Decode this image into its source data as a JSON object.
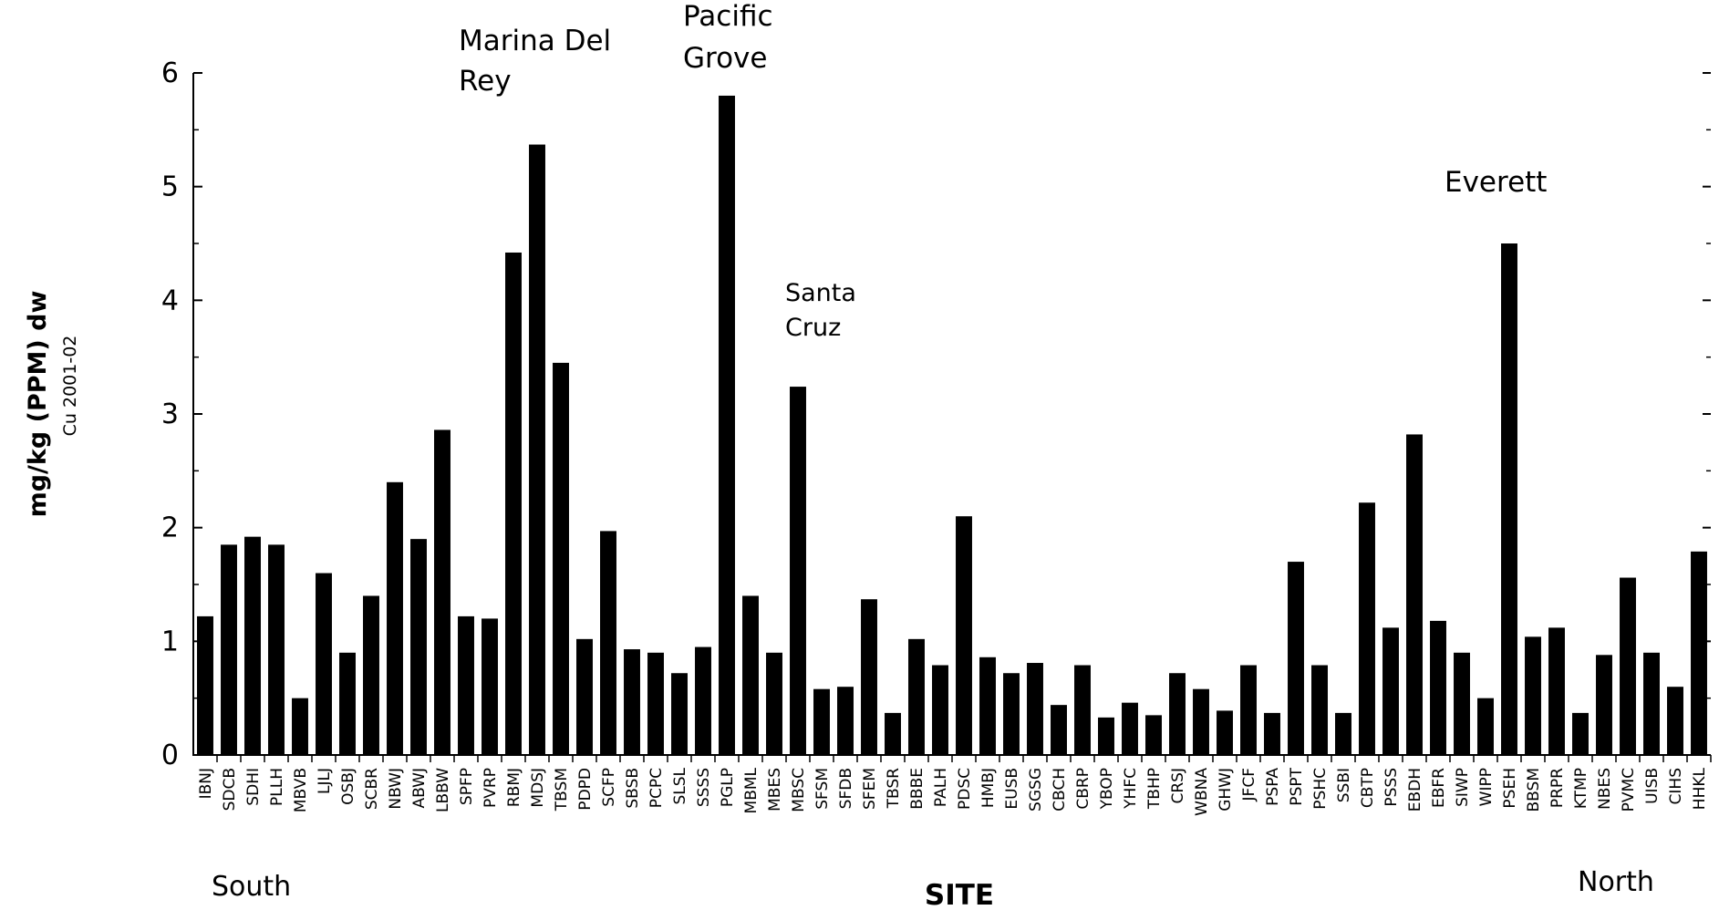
{
  "chart_data": {
    "type": "bar",
    "ylabel": "mg/kg (PPM) dw",
    "ylabel_sub": "Cu 2001-02",
    "xlabel": "SITE",
    "ylim": [
      0,
      6
    ],
    "yticks": [
      "0",
      "1",
      "2",
      "3",
      "4",
      "5",
      "6"
    ],
    "grid": false,
    "bar_color": "#000000",
    "direction_left": "South",
    "direction_right": "North",
    "categories": [
      "IBNJ",
      "SDCB",
      "SDHI",
      "PLLH",
      "MBVB",
      "LJLJ",
      "OSBJ",
      "SCBR",
      "NBWJ",
      "ABWJ",
      "LBBW",
      "SPFP",
      "PVRP",
      "RBMJ",
      "MDSJ",
      "TBSM",
      "PDPD",
      "SCFP",
      "SBSB",
      "PCPC",
      "SLSL",
      "SSSS",
      "PGLP",
      "MBML",
      "MBES",
      "MBSC",
      "SFSM",
      "SFDB",
      "SFEM",
      "TBSR",
      "BBBE",
      "PALH",
      "PDSC",
      "HMBJ",
      "EUSB",
      "SGSG",
      "CBCH",
      "CBRP",
      "YBOP",
      "YHFC",
      "TBHP",
      "CRSJ",
      "WBNA",
      "GHWJ",
      "JFCF",
      "PSPA",
      "PSPT",
      "PSHC",
      "SSBI",
      "CBTP",
      "PSSS",
      "EBDH",
      "EBFR",
      "SIWP",
      "WIPP",
      "PSEH",
      "BBSM",
      "PRPR",
      "KTMP",
      "NBES",
      "PVMC",
      "UISB",
      "CIHS",
      "HHKL"
    ],
    "values": [
      1.22,
      1.85,
      1.92,
      1.85,
      0.5,
      1.6,
      0.9,
      1.4,
      2.4,
      1.9,
      2.86,
      1.22,
      1.2,
      4.42,
      5.37,
      3.45,
      1.02,
      1.97,
      0.93,
      0.9,
      0.72,
      0.95,
      5.8,
      1.4,
      0.9,
      3.24,
      0.58,
      0.6,
      1.37,
      0.37,
      1.02,
      0.79,
      2.1,
      0.86,
      0.72,
      0.81,
      0.44,
      0.79,
      0.33,
      0.46,
      0.35,
      0.72,
      0.58,
      0.39,
      0.79,
      0.37,
      1.7,
      0.79,
      0.37,
      2.22,
      1.12,
      2.82,
      1.18,
      0.9,
      0.5,
      4.5,
      1.04,
      1.12,
      0.37,
      0.88,
      1.56,
      0.9,
      0.6,
      1.79
    ],
    "annotations": [
      {
        "lines": [
          "Marina Del",
          "Rey"
        ],
        "category": "RBMJ"
      },
      {
        "lines": [
          "Pacific",
          "Grove"
        ],
        "category": "PGLP"
      },
      {
        "lines": [
          "Santa",
          "Cruz"
        ],
        "category": "MBSC"
      },
      {
        "lines": [
          "Everett"
        ],
        "category": "PSEH"
      }
    ]
  }
}
